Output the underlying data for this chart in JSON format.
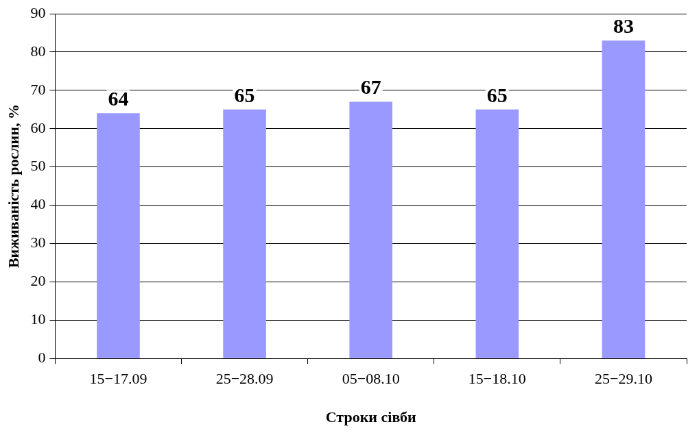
{
  "chart_data": {
    "type": "bar",
    "xlabel": "Строки сівби",
    "ylabel": "Виживаність рослин, %",
    "categories": [
      "15−17.09",
      "25−28.09",
      "05−08.10",
      "15−18.10",
      "25−29.10"
    ],
    "values": [
      64,
      65,
      67,
      65,
      83
    ],
    "color": "#9999ff",
    "ylim": [
      0,
      90
    ],
    "yticks": [
      0,
      10,
      20,
      30,
      40,
      50,
      60,
      70,
      80,
      90
    ],
    "grid": "y",
    "legend": false,
    "data_labels": true
  }
}
